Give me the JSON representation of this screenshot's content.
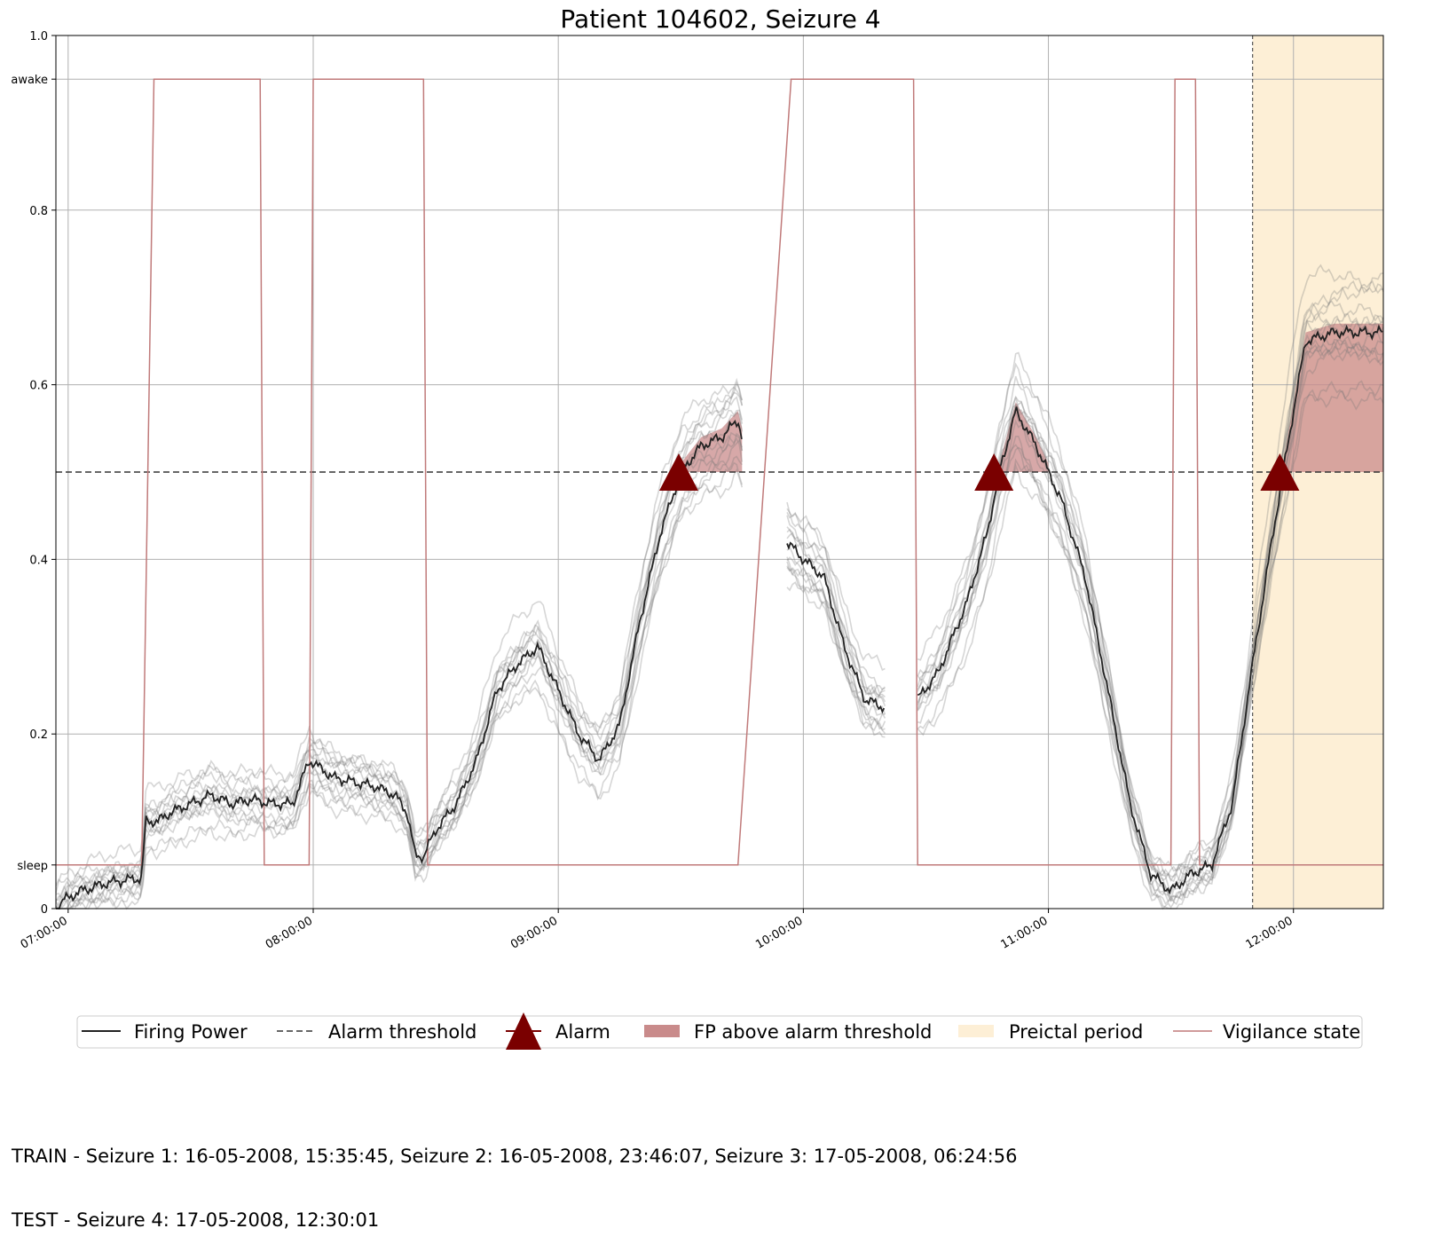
{
  "chart_data": {
    "type": "line",
    "title": "Patient 104602, Seizure 4",
    "xlabel": "",
    "ylabel": "",
    "x_range": [
      "06:57:00",
      "12:22:00"
    ],
    "ylim": [
      0,
      1.0
    ],
    "y_ticks": [
      {
        "value": 0,
        "label": "0"
      },
      {
        "value": 0.05,
        "label": "sleep"
      },
      {
        "value": 0.2,
        "label": "0.2"
      },
      {
        "value": 0.4,
        "label": "0.4"
      },
      {
        "value": 0.6,
        "label": "0.6"
      },
      {
        "value": 0.8,
        "label": "0.8"
      },
      {
        "value": 0.95,
        "label": "awake"
      },
      {
        "value": 1.0,
        "label": "1.0"
      }
    ],
    "x_ticks": [
      "07:00:00",
      "08:00:00",
      "09:00:00",
      "10:00:00",
      "11:00:00",
      "12:00:00"
    ],
    "grid": true,
    "legend_position": "bottom-center",
    "alarm_threshold": 0.5,
    "preictal_period": {
      "start": "11:50:00",
      "end": "12:22:00"
    },
    "colors": {
      "firing_power": "#222222",
      "ensemble": "#777777",
      "threshold": "#333333",
      "alarm": "#7a0000",
      "fp_above": "#c98b8b",
      "preictal": "#fdefd6",
      "vigilance": "#c07a7a"
    },
    "alarms": [
      {
        "time": "09:29:30",
        "value": 0.5
      },
      {
        "time": "10:46:40",
        "value": 0.5
      },
      {
        "time": "11:56:40",
        "value": 0.5
      }
    ],
    "series": [
      {
        "name": "Firing Power",
        "segments": [
          [
            [
              "06:57:00",
              0.0
            ],
            [
              "06:59:00",
              0.01
            ],
            [
              "07:03:00",
              0.02
            ],
            [
              "07:10:00",
              0.03
            ],
            [
              "07:18:00",
              0.035
            ],
            [
              "07:19:00",
              0.1
            ],
            [
              "07:22:00",
              0.1
            ],
            [
              "07:25:00",
              0.11
            ],
            [
              "07:30:00",
              0.12
            ],
            [
              "07:35:00",
              0.13
            ],
            [
              "07:40:00",
              0.12
            ],
            [
              "07:45:00",
              0.125
            ],
            [
              "07:50:00",
              0.12
            ],
            [
              "07:55:00",
              0.12
            ],
            [
              "07:59:00",
              0.17
            ],
            [
              "08:05:00",
              0.15
            ],
            [
              "08:10:00",
              0.145
            ],
            [
              "08:15:00",
              0.14
            ],
            [
              "08:20:00",
              0.13
            ],
            [
              "08:23:00",
              0.11
            ],
            [
              "08:25:00",
              0.06
            ],
            [
              "08:27:00",
              0.06
            ],
            [
              "08:30:00",
              0.09
            ],
            [
              "08:35:00",
              0.12
            ],
            [
              "08:40:00",
              0.17
            ],
            [
              "08:45:00",
              0.25
            ],
            [
              "08:50:00",
              0.28
            ],
            [
              "08:55:00",
              0.3
            ],
            [
              "09:00:00",
              0.25
            ],
            [
              "09:05:00",
              0.2
            ],
            [
              "09:10:00",
              0.17
            ],
            [
              "09:15:00",
              0.21
            ],
            [
              "09:20:00",
              0.33
            ],
            [
              "09:25:00",
              0.43
            ],
            [
              "09:30:00",
              0.5
            ],
            [
              "09:35:00",
              0.53
            ],
            [
              "09:40:00",
              0.54
            ],
            [
              "09:44:00",
              0.56
            ],
            [
              "09:45:00",
              0.54
            ]
          ],
          [
            [
              "09:56:00",
              0.42
            ],
            [
              "10:00:00",
              0.4
            ],
            [
              "10:05:00",
              0.38
            ],
            [
              "10:10:00",
              0.3
            ],
            [
              "10:15:00",
              0.24
            ],
            [
              "10:20:00",
              0.23
            ]
          ],
          [
            [
              "10:28:00",
              0.24
            ],
            [
              "10:33:00",
              0.27
            ],
            [
              "10:40:00",
              0.35
            ],
            [
              "10:45:00",
              0.43
            ],
            [
              "10:48:00",
              0.5
            ],
            [
              "10:52:00",
              0.57
            ],
            [
              "10:57:00",
              0.53
            ],
            [
              "11:03:00",
              0.47
            ],
            [
              "11:09:00",
              0.38
            ],
            [
              "11:15:00",
              0.24
            ],
            [
              "11:20:00",
              0.12
            ],
            [
              "11:25:00",
              0.04
            ],
            [
              "11:30:00",
              0.02
            ],
            [
              "11:35:00",
              0.04
            ],
            [
              "11:40:00",
              0.05
            ],
            [
              "11:45:00",
              0.12
            ],
            [
              "11:50:00",
              0.28
            ],
            [
              "11:55:00",
              0.43
            ],
            [
              "12:00:00",
              0.57
            ],
            [
              "12:03:00",
              0.65
            ],
            [
              "12:10:00",
              0.66
            ],
            [
              "12:15:00",
              0.66
            ],
            [
              "12:22:00",
              0.66
            ]
          ]
        ]
      },
      {
        "name": "Alarm threshold",
        "values": [
          [
            "06:57:00",
            0.5
          ],
          [
            "12:22:00",
            0.5
          ]
        ]
      },
      {
        "name": "Vigilance state",
        "values": [
          [
            "06:57:00",
            0.05
          ],
          [
            "07:18:00",
            0.05
          ],
          [
            "07:21:00",
            0.95
          ],
          [
            "07:47:00",
            0.95
          ],
          [
            "07:48:00",
            0.05
          ],
          [
            "07:59:00",
            0.05
          ],
          [
            "08:00:00",
            0.95
          ],
          [
            "08:27:00",
            0.95
          ],
          [
            "08:28:00",
            0.05
          ],
          [
            "09:44:00",
            0.05
          ],
          [
            "09:57:00",
            0.95
          ],
          [
            "10:27:00",
            0.95
          ],
          [
            "10:28:00",
            0.05
          ],
          [
            "11:30:00",
            0.05
          ],
          [
            "11:31:00",
            0.95
          ],
          [
            "11:36:00",
            0.95
          ],
          [
            "11:37:00",
            0.05
          ],
          [
            "12:22:00",
            0.05
          ]
        ]
      }
    ],
    "legend": [
      {
        "label": "Firing Power",
        "kind": "line"
      },
      {
        "label": "Alarm threshold",
        "kind": "dashed"
      },
      {
        "label": "Alarm",
        "kind": "marker"
      },
      {
        "label": "FP above alarm threshold",
        "kind": "patch-fp"
      },
      {
        "label": "Preictal period",
        "kind": "patch-preictal"
      },
      {
        "label": "Vigilance state",
        "kind": "vigilance"
      }
    ]
  },
  "footer": {
    "line1": "TRAIN - Seizure 1: 16-05-2008, 15:35:45, Seizure 2: 16-05-2008, 23:46:07, Seizure 3: 17-05-2008, 06:24:56",
    "line2": "TEST - Seizure 4: 17-05-2008, 12:30:01"
  }
}
